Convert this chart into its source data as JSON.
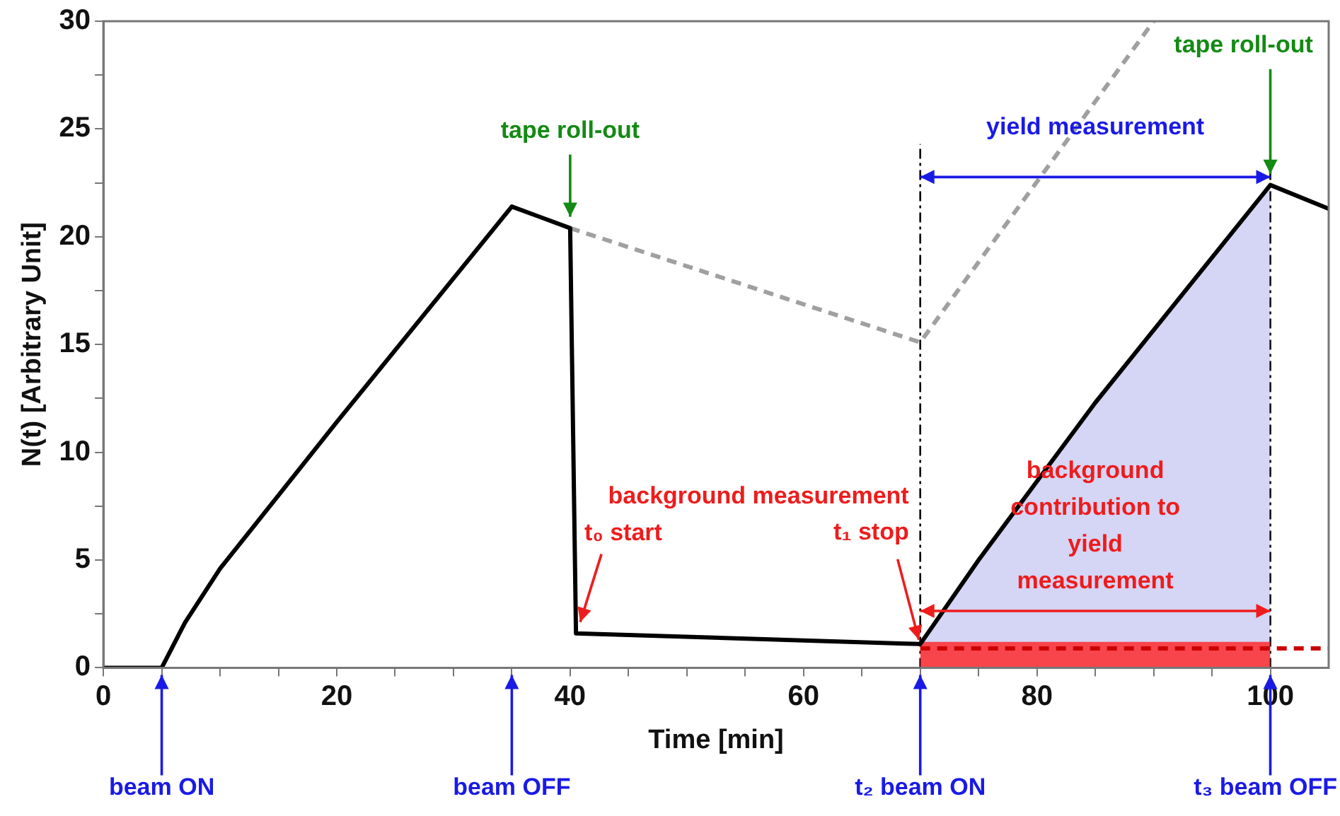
{
  "chart_data": {
    "type": "line",
    "xlabel": "Time [min]",
    "ylabel": "N(t) [Arbitrary Unit]",
    "xlim": [
      0,
      105
    ],
    "ylim": [
      0,
      30
    ],
    "xticks": [
      0,
      {
        "value": 5,
        "label": null
      },
      {
        "value": 10,
        "label": null
      },
      {
        "value": 15,
        "label": null
      },
      20,
      {
        "value": 25,
        "label": null
      },
      {
        "value": 30,
        "label": null
      },
      {
        "value": 35,
        "label": null
      },
      40,
      {
        "value": 45,
        "label": null
      },
      {
        "value": 50,
        "label": null
      },
      {
        "value": 55,
        "label": null
      },
      60,
      {
        "value": 65,
        "label": null
      },
      {
        "value": 70,
        "label": null
      },
      {
        "value": 75,
        "label": null
      },
      80,
      {
        "value": 85,
        "label": null
      },
      {
        "value": 90,
        "label": null
      },
      {
        "value": 95,
        "label": null
      },
      100
    ],
    "yticks": [
      0,
      {
        "value": 2.5,
        "label": null
      },
      5,
      {
        "value": 7.5,
        "label": null
      },
      10,
      {
        "value": 12.5,
        "label": null
      },
      15,
      {
        "value": 17.5,
        "label": null
      },
      20,
      {
        "value": 22.5,
        "label": null
      },
      25,
      {
        "value": 27.5,
        "label": null
      },
      30
    ],
    "grid": false,
    "legend": false,
    "marker": "none",
    "line_style": "solid",
    "series": [
      {
        "type": "area",
        "color": "#8080e0",
        "x": [
          70,
          75,
          85,
          100
        ],
        "values": [
          1.1,
          5.0,
          12.3,
          22.4
        ]
      },
      {
        "type": "area",
        "color": "#ff2020",
        "x": [
          70,
          100
        ],
        "values": [
          1.2,
          1.2
        ]
      },
      {
        "type": "line",
        "color": "#cc0000",
        "line_style": "dashed",
        "x": [
          70,
          105
        ],
        "values": [
          0.9,
          0.9
        ]
      },
      {
        "type": "line",
        "color": "#a0a0a0",
        "line_style": "dashed",
        "x": [
          40,
          70,
          90
        ],
        "values": [
          20.4,
          15.1,
          30
        ]
      },
      {
        "type": "line",
        "color": "#000000",
        "x": [
          0,
          5,
          7,
          10,
          15,
          20,
          35,
          40,
          40.5,
          70,
          75,
          85,
          100,
          105
        ],
        "values": [
          0,
          0,
          2.1,
          4.6,
          8.0,
          11.4,
          21.4,
          20.4,
          1.6,
          1.1,
          5.0,
          12.3,
          22.4,
          21.3
        ]
      }
    ],
    "ref_lines": [
      {
        "axis": "x",
        "value": 70,
        "color": "#000000",
        "line_style": "dashed"
      },
      {
        "axis": "x",
        "value": 100,
        "color": "#000000",
        "line_style": "dashed"
      }
    ],
    "annotations": [
      {
        "text": "tape roll-out",
        "x": 40,
        "y": 20.4
      },
      {
        "text": "tape roll-out",
        "x": 100,
        "y": 22.4
      },
      "yield measurement",
      "background measurement",
      {
        "text": "t₀ start",
        "x": 40.5,
        "y": 1.6
      },
      {
        "text": "t₁ stop",
        "x": 70,
        "y": 1.1
      },
      "background contribution to yield measurement",
      "beam ON",
      "beam OFF",
      "t₂ beam ON",
      "t₃ beam OFF"
    ]
  }
}
